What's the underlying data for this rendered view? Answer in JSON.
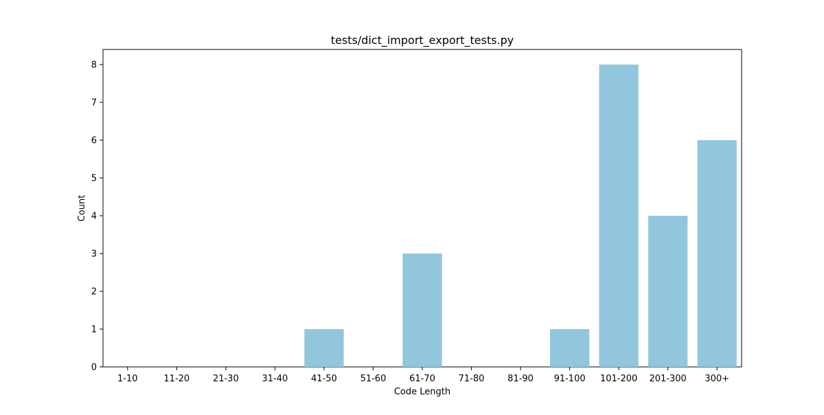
{
  "chart_data": {
    "type": "bar",
    "title": "tests/dict_import_export_tests.py",
    "xlabel": "Code Length",
    "ylabel": "Count",
    "categories": [
      "1-10",
      "11-20",
      "21-30",
      "31-40",
      "41-50",
      "51-60",
      "61-70",
      "71-80",
      "81-90",
      "91-100",
      "101-200",
      "201-300",
      "300+"
    ],
    "values": [
      0,
      0,
      0,
      0,
      1,
      0,
      3,
      0,
      0,
      1,
      8,
      4,
      6
    ],
    "ylim": [
      0,
      8.4
    ],
    "yticks": [
      0,
      1,
      2,
      3,
      4,
      5,
      6,
      7,
      8
    ],
    "bar_color": "#92C6DD",
    "grid": false,
    "legend": "none"
  }
}
